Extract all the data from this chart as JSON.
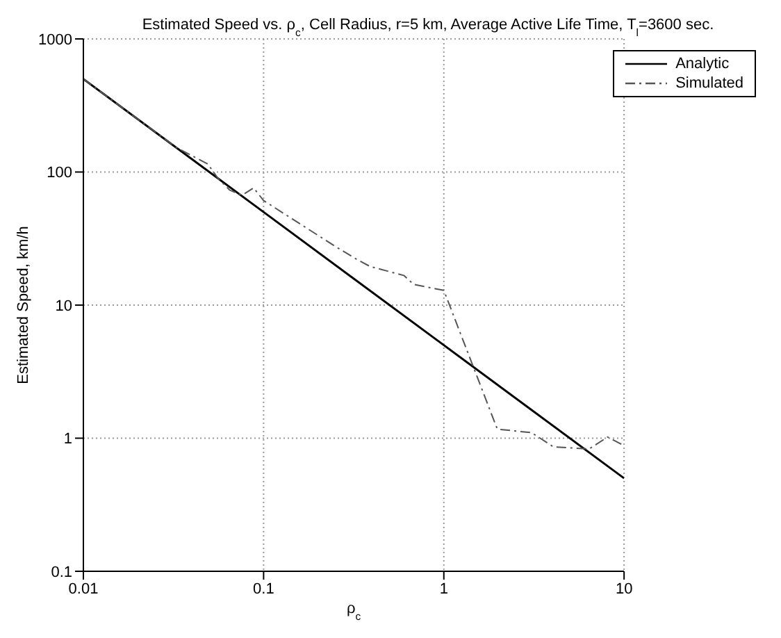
{
  "chart_data": {
    "type": "line",
    "title": "Estimated Speed vs. ρ$_{c}$, Cell Radius, r=5 km, Average Active Life Time, T$_{l}$=3600 sec.",
    "xlabel": "ρ$_{c}$",
    "ylabel": "Estimated Speed, km/h",
    "log": "xy",
    "grid": true,
    "legend": "top right",
    "xlim": [
      0.01,
      10
    ],
    "xticks": [
      0.01,
      0.1,
      1,
      10
    ],
    "ylim": [
      0.1,
      1000
    ],
    "yticks": [
      0.1,
      1,
      10,
      100,
      1000
    ],
    "series": [
      {
        "name": "Analytic",
        "color": "#000000",
        "line_style": "solid",
        "x": [
          0.01,
          0.1,
          1,
          10
        ],
        "values": [
          500,
          50,
          5,
          0.5
        ]
      },
      {
        "name": "Simulated",
        "color": "#555555",
        "line_style": "dashdot",
        "x": [
          0.01,
          0.02,
          0.033,
          0.049,
          0.056,
          0.065,
          0.076,
          0.088,
          0.1,
          0.25,
          0.33,
          0.39,
          0.6,
          0.68,
          1,
          1.98,
          3.07,
          4.06,
          6.4,
          8.1,
          10
        ],
        "values": [
          500,
          250,
          152,
          115,
          89,
          73,
          67,
          76,
          61,
          27.6,
          22,
          19.5,
          16.7,
          14.3,
          12.9,
          1.17,
          1.1,
          0.86,
          0.83,
          1.02,
          0.88
        ]
      }
    ]
  }
}
